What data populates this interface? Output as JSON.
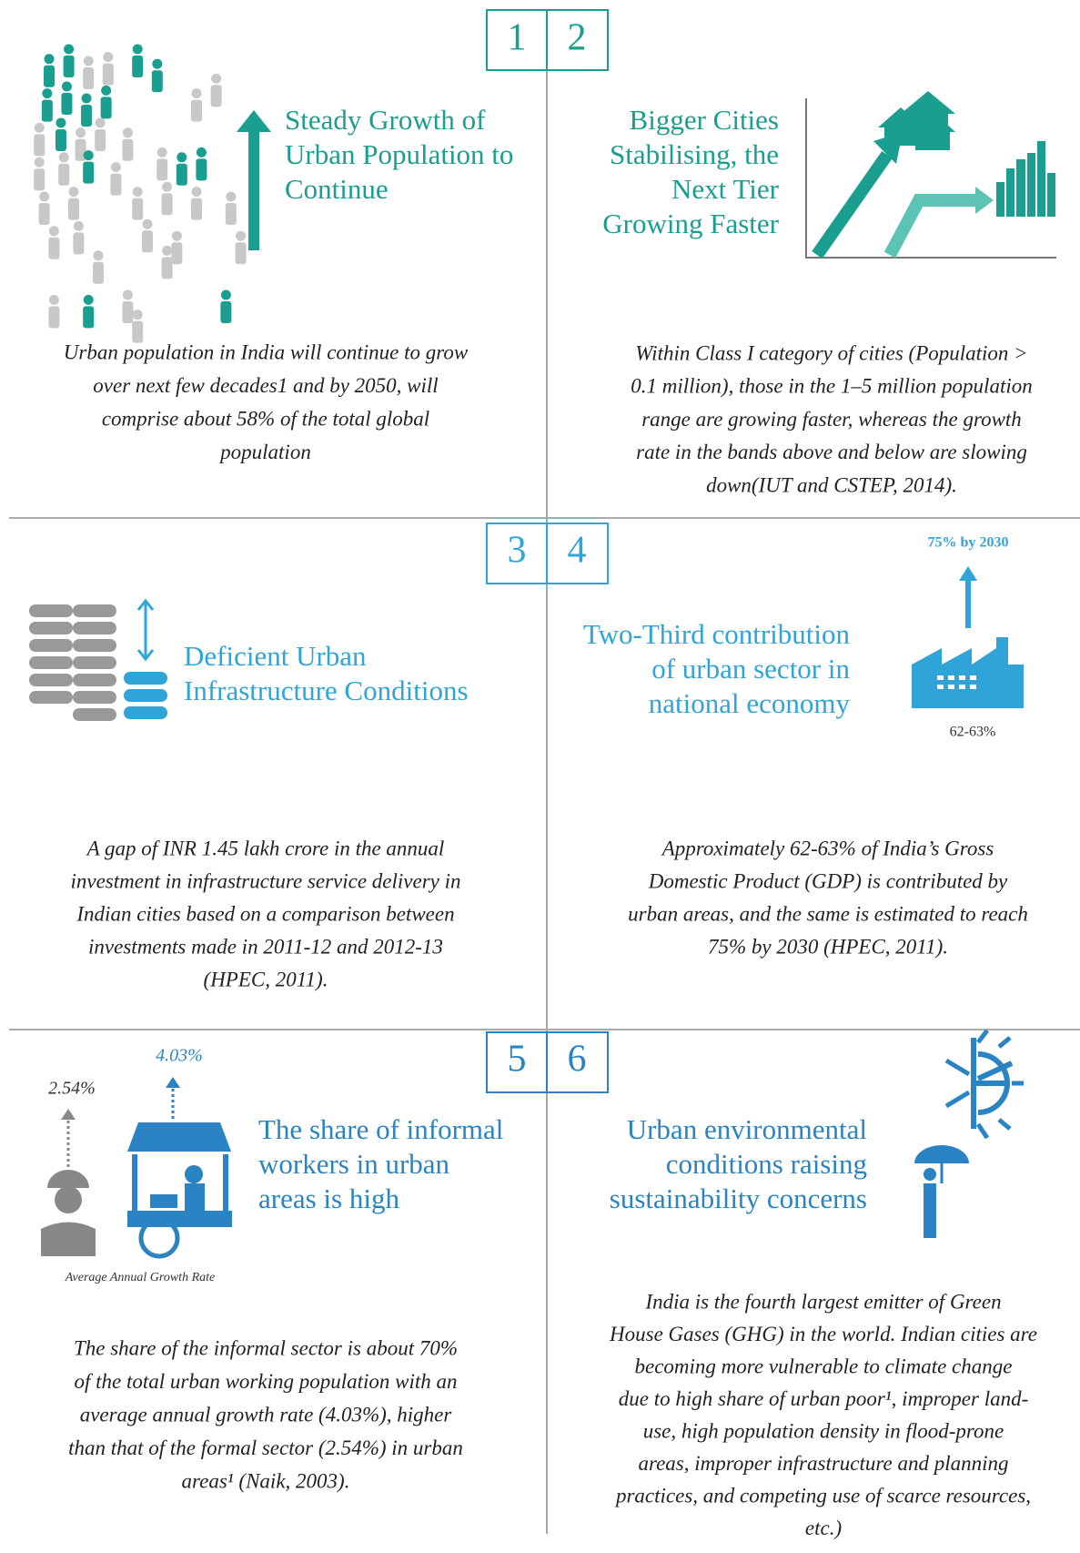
{
  "panels": [
    {
      "number": 1,
      "heading": [
        "Steady Growth of",
        "Urban Population to",
        "Continue"
      ],
      "body": [
        "Urban population in India will continue to grow",
        "over next few decades1 and by 2050, will",
        "comprise about 58% of the total global",
        "population"
      ]
    },
    {
      "number": 2,
      "heading": [
        "Bigger Cities",
        "Stabilising, the",
        "Next Tier",
        "Growing Faster"
      ],
      "body": [
        "Within Class I category of cities (Population >",
        "0.1 million), those in the 1–5 million population",
        "range are growing faster, whereas the growth",
        "rate in the bands above and below are slowing",
        "down(IUT and CSTEP, 2014)."
      ]
    },
    {
      "number": 3,
      "heading": [
        "Deficient Urban",
        "Infrastructure Conditions"
      ],
      "body": [
        "A gap of INR 1.45 lakh crore in the annual",
        "investment in infrastructure service delivery in",
        "Indian cities based on a comparison between",
        "investments made in 2011-12 and 2012-13",
        "(HPEC, 2011)."
      ]
    },
    {
      "number": 4,
      "heading": [
        "Two-Third contribution",
        "of urban sector in",
        "national economy"
      ],
      "labels": [
        "75% by 2030",
        "62-63%"
      ],
      "body": [
        "Approximately 62-63% of India’s Gross",
        "Domestic Product (GDP) is contributed by",
        "urban areas, and the same is estimated to reach",
        "75% by 2030 (HPEC, 2011)."
      ]
    },
    {
      "number": 5,
      "heading": [
        "The share of informal",
        "workers in urban",
        "areas is high"
      ],
      "labels": [
        "4.03%",
        "2.54%",
        "Average Annual Growth Rate"
      ],
      "body": [
        "The share of the informal sector is about 70%",
        "of the total urban working population with an",
        "average annual growth rate (4.03%), higher",
        "than that of the formal sector (2.54%) in urban",
        "areas¹ (Naik, 2003)."
      ]
    },
    {
      "number": 6,
      "heading": [
        "Urban environmental",
        "conditions raising",
        "sustainability concerns"
      ],
      "body": [
        "India is the fourth largest emitter of Green",
        "House Gases (GHG) in the world. Indian cities are",
        "becoming more vulnerable to climate change",
        "due to high share of urban poor¹, improper land-",
        "use, high population density in flood-prone",
        "areas, improper infrastructure and planning",
        "practices, and competing use of scarce resources,",
        "etc.)"
      ]
    }
  ]
}
